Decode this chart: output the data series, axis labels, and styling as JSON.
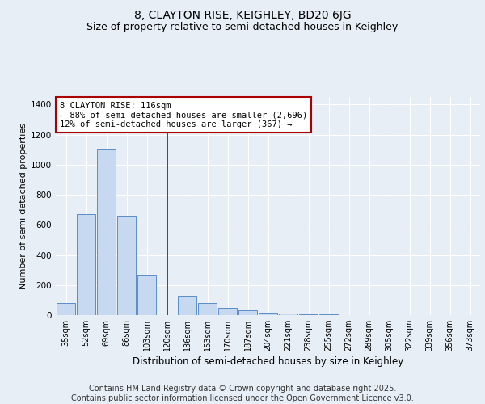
{
  "title1": "8, CLAYTON RISE, KEIGHLEY, BD20 6JG",
  "title2": "Size of property relative to semi-detached houses in Keighley",
  "xlabel": "Distribution of semi-detached houses by size in Keighley",
  "ylabel": "Number of semi-detached properties",
  "categories": [
    "35sqm",
    "52sqm",
    "69sqm",
    "86sqm",
    "103sqm",
    "120sqm",
    "136sqm",
    "153sqm",
    "170sqm",
    "187sqm",
    "204sqm",
    "221sqm",
    "238sqm",
    "255sqm",
    "272sqm",
    "289sqm",
    "305sqm",
    "322sqm",
    "339sqm",
    "356sqm",
    "373sqm"
  ],
  "values": [
    80,
    670,
    1100,
    660,
    270,
    0,
    130,
    80,
    50,
    30,
    15,
    10,
    5,
    3,
    2,
    1,
    1,
    1,
    1,
    1,
    0
  ],
  "bar_color": "#c6d9f1",
  "bar_edge_color": "#5b8dc8",
  "red_line_index": 5,
  "annotation_line1": "8 CLAYTON RISE: 116sqm",
  "annotation_line2": "← 88% of semi-detached houses are smaller (2,696)",
  "annotation_line3": "12% of semi-detached houses are larger (367) →",
  "ylim": [
    0,
    1450
  ],
  "yticks": [
    0,
    200,
    400,
    600,
    800,
    1000,
    1200,
    1400
  ],
  "bg_color": "#e8eef6",
  "plot_bg_color": "#e8eef6",
  "grid_color": "#ffffff",
  "footer": "Contains HM Land Registry data © Crown copyright and database right 2025.\nContains public sector information licensed under the Open Government Licence v3.0.",
  "title1_fontsize": 10,
  "title2_fontsize": 9,
  "xlabel_fontsize": 8.5,
  "ylabel_fontsize": 8,
  "annotation_fontsize": 7.5,
  "footer_fontsize": 7
}
